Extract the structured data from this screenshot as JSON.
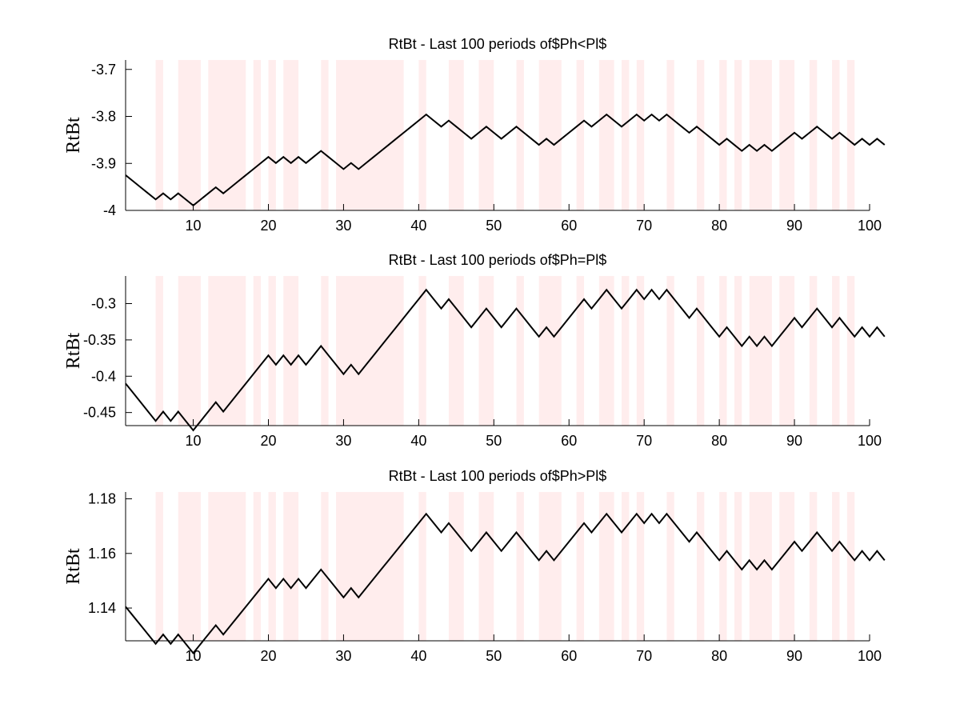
{
  "chart_data": [
    {
      "type": "line",
      "title": "RtBt - Last 100 periods of$Ph<Pl$",
      "ylabel": "RtBt",
      "xlabel": "",
      "xlim": [
        1,
        100
      ],
      "ylim": [
        -4.0,
        -3.68
      ],
      "xticks": [
        "10",
        "20",
        "30",
        "40",
        "50",
        "60",
        "70",
        "80",
        "90",
        "100"
      ],
      "yticks": [
        "-3.7",
        "-3.8",
        "-3.9",
        "-4"
      ],
      "ytick_values": [
        -3.7,
        -3.8,
        -3.9,
        -4.0
      ],
      "base": -3.925,
      "step": 0.0129,
      "line_color": "#000000",
      "band_color": "#ffeded",
      "grid": false
    },
    {
      "type": "line",
      "title": "RtBt - Last 100 periods of$Ph=Pl$",
      "ylabel": "RtBt",
      "xlabel": "",
      "xlim": [
        1,
        100
      ],
      "ylim": [
        -0.468,
        -0.262
      ],
      "xticks": [
        "10",
        "20",
        "30",
        "40",
        "50",
        "60",
        "70",
        "80",
        "90",
        "100"
      ],
      "yticks": [
        "-0.3",
        "-0.35",
        "-0.4",
        "-0.45"
      ],
      "ytick_values": [
        -0.3,
        -0.35,
        -0.4,
        -0.45
      ],
      "base": -0.41,
      "step": 0.0129,
      "line_color": "#000000",
      "band_color": "#ffeded",
      "grid": false
    },
    {
      "type": "line",
      "title": "RtBt - Last 100 periods of$Ph>Pl$",
      "ylabel": "RtBt",
      "xlabel": "",
      "xlim": [
        1,
        100
      ],
      "ylim": [
        1.128,
        1.1825
      ],
      "xticks": [
        "10",
        "20",
        "30",
        "40",
        "50",
        "60",
        "70",
        "80",
        "90",
        "100"
      ],
      "yticks": [
        "1.18",
        "1.16",
        "1.14"
      ],
      "ytick_values": [
        1.18,
        1.16,
        1.14
      ],
      "base": 1.1405,
      "step": 0.0034,
      "line_color": "#000000",
      "band_color": "#ffeded",
      "grid": false
    }
  ],
  "moves": [
    -1,
    -1,
    -1,
    -1,
    1,
    -1,
    1,
    -1,
    -1,
    1,
    1,
    1,
    -1,
    1,
    1,
    1,
    1,
    1,
    1,
    -1,
    1,
    -1,
    1,
    -1,
    1,
    1,
    -1,
    -1,
    -1,
    1,
    -1,
    1,
    1,
    1,
    1,
    1,
    1,
    1,
    1,
    1,
    -1,
    -1,
    1,
    -1,
    -1,
    -1,
    1,
    1,
    -1,
    -1,
    1,
    1,
    -1,
    -1,
    -1,
    1,
    -1,
    1,
    1,
    1,
    1,
    -1,
    1,
    1,
    -1,
    -1,
    1,
    1,
    -1,
    1,
    -1,
    1,
    -1,
    -1,
    -1,
    1,
    -1,
    -1,
    -1,
    1,
    -1,
    -1,
    1,
    -1,
    1,
    -1,
    1,
    1,
    1,
    -1,
    1,
    1,
    -1,
    -1,
    1,
    -1,
    -1,
    1,
    -1,
    1,
    -1
  ],
  "shaded_periods": [
    [
      5,
      6
    ],
    [
      8,
      11
    ],
    [
      12,
      17
    ],
    [
      18,
      19
    ],
    [
      20,
      21
    ],
    [
      22,
      24
    ],
    [
      27,
      28
    ],
    [
      29,
      38
    ],
    [
      40,
      41
    ],
    [
      44,
      46
    ],
    [
      48,
      50
    ],
    [
      53,
      54
    ],
    [
      56,
      59
    ],
    [
      61,
      62
    ],
    [
      64,
      66
    ],
    [
      67,
      68
    ],
    [
      69,
      70
    ],
    [
      73,
      74
    ],
    [
      77,
      78
    ],
    [
      80,
      81
    ],
    [
      82,
      83
    ],
    [
      84,
      87
    ],
    [
      88,
      90
    ],
    [
      92,
      93
    ],
    [
      95,
      96
    ],
    [
      97,
      98
    ]
  ]
}
